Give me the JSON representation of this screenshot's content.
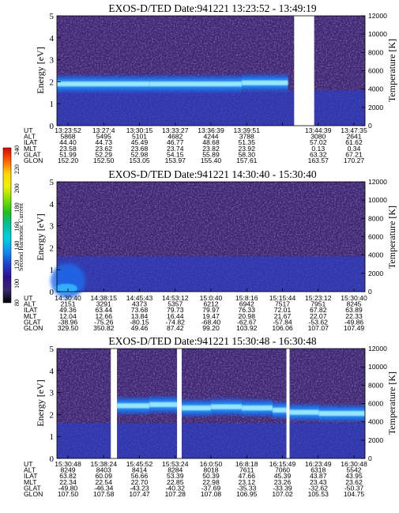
{
  "colors": {
    "background": "#ffffff",
    "field_dark": "#3a2870",
    "field_blue": "#2a3fc8",
    "band_cyan": "#32b4ff",
    "band_core": "#9ee8ff",
    "gap": "#ffffff"
  },
  "colorbar": {
    "label": "Second Harmonic Current",
    "ticks": [
      "240",
      "220",
      "200",
      "180",
      "160",
      "140",
      "120",
      "100",
      "80"
    ],
    "stops": [
      "#e00000",
      "#ff6000",
      "#ffd800",
      "#f0f000",
      "#80e000",
      "#20c020",
      "#00c0a0",
      "#00d0e0",
      "#1090f0",
      "#2040d0",
      "#301090",
      "#3a2870",
      "#000000"
    ]
  },
  "chart_data": [
    {
      "type": "heatmap",
      "title": "EXOS-D/TED   Date:941221   13:23:52 - 13:49:19",
      "ylabel": "Energy [eV]",
      "y2label": "Temperature [K]",
      "ylim": [
        0,
        5
      ],
      "y2lim": [
        0,
        12000
      ],
      "yticks": [
        "0",
        "1",
        "2",
        "3",
        "4",
        "5"
      ],
      "y2ticks": [
        "0",
        "2000",
        "4000",
        "6000",
        "8000",
        "10000",
        "12000"
      ],
      "gaps": [
        [
          0.77,
          0.835
        ]
      ],
      "band": {
        "x": [
          0,
          0.3,
          0.6,
          0.75,
          0.77,
          0.835,
          1.0
        ],
        "energy_ev": [
          1.9,
          1.9,
          1.95,
          2.0,
          null,
          null,
          null
        ]
      },
      "orbit": {
        "labels": [
          "UT",
          "ALT",
          "ILAT",
          "MLT",
          "GLAT",
          "GLON"
        ],
        "columns": [
          [
            "13:23:52",
            "5868",
            "44.40",
            "23.58",
            "51.99",
            "152.20"
          ],
          [
            "13:27:4",
            "5495",
            "44.73",
            "23.62",
            "52.29",
            "152.50"
          ],
          [
            "13:30:15",
            "5101",
            "45.49",
            "23.68",
            "52.98",
            "153.05"
          ],
          [
            "13:33:27",
            "4682",
            "46.77",
            "23.74",
            "54.15",
            "153.97"
          ],
          [
            "13:36:39",
            "4244",
            "48.68",
            "23.82",
            "55.89",
            "155.40"
          ],
          [
            "13:39:51",
            "3788",
            "51.35",
            "23.92",
            "58.30",
            "157.61"
          ],
          [
            "",
            "",
            "",
            "",
            "",
            ""
          ],
          [
            "13:44:39",
            "3080",
            "57.02",
            "0.13",
            "63.32",
            "163.57"
          ],
          [
            "13:47:35",
            "2641",
            "61.62",
            "0.34",
            "67.21",
            "170.27"
          ]
        ]
      }
    },
    {
      "type": "heatmap",
      "title": "EXOS-D/TED   Date:941221   14:30:40 - 15:30:40",
      "ylabel": "Energy [eV]",
      "y2label": "Temperature [K]",
      "ylim": [
        0,
        5
      ],
      "y2lim": [
        0,
        12000
      ],
      "yticks": [
        "0",
        "1",
        "2",
        "3",
        "4",
        "5"
      ],
      "y2ticks": [
        "0",
        "2000",
        "4000",
        "6000",
        "8000",
        "10000",
        "12000"
      ],
      "gaps": [],
      "band": null,
      "orbit": {
        "labels": [
          "UT",
          "ALT",
          "ILAT",
          "MLT",
          "GLAT",
          "GLON"
        ],
        "columns": [
          [
            "14:30:40",
            "2151",
            "49.36",
            "12.04",
            "-38.96",
            "329.50"
          ],
          [
            "14:38:15",
            "3291",
            "63.44",
            "12.66",
            "-75.26",
            "350.82"
          ],
          [
            "14:45:43",
            "4373",
            "73.68",
            "13.84",
            "-80.15",
            "49.46"
          ],
          [
            "14:53:12",
            "5357",
            "79.73",
            "16.44",
            "-74.82",
            "87.42"
          ],
          [
            "15:0:40",
            "6212",
            "79.97",
            "19.47",
            "-68.40",
            "99.20"
          ],
          [
            "15:8:16",
            "6942",
            "76.33",
            "20.98",
            "-62.67",
            "103.92"
          ],
          [
            "15:15:44",
            "7517",
            "72.01",
            "21.67",
            "-57.84",
            "106.06"
          ],
          [
            "15:23:12",
            "7951",
            "67.82",
            "22.07",
            "-53.62",
            "107.07"
          ],
          [
            "15:30:40",
            "8245",
            "63.89",
            "22.33",
            "-49.86",
            "107.49"
          ]
        ]
      }
    },
    {
      "type": "heatmap",
      "title": "EXOS-D/TED   Date:941221   15:30:48 - 16:30:48",
      "ylabel": "Energy [eV]",
      "y2label": "Temperature [K]",
      "ylim": [
        0,
        5
      ],
      "y2lim": [
        0,
        12000
      ],
      "yticks": [
        "0",
        "1",
        "2",
        "3",
        "4",
        "5"
      ],
      "y2ticks": [
        "0",
        "2000",
        "4000",
        "6000",
        "8000",
        "10000",
        "12000"
      ],
      "gaps": [
        [
          0.175,
          0.195
        ],
        [
          0.39,
          0.405
        ],
        [
          0.745,
          0.755
        ]
      ],
      "band": {
        "x": [
          0.195,
          0.3,
          0.39,
          0.405,
          0.5,
          0.6,
          0.7,
          0.745,
          0.755,
          0.85,
          1.0
        ],
        "energy_ev": [
          2.4,
          2.45,
          2.4,
          2.3,
          2.35,
          2.3,
          2.2,
          2.15,
          2.1,
          2.05,
          2.0
        ]
      },
      "orbit": {
        "labels": [
          "UT",
          "ALT",
          "ILAT",
          "MLT",
          "GLAT",
          "GLON"
        ],
        "columns": [
          [
            "15:30:48",
            "8249",
            "63.82",
            "22.34",
            "-49.80",
            "107.50"
          ],
          [
            "15:38:24",
            "8403",
            "60.09",
            "22.54",
            "-46.34",
            "107.58"
          ],
          [
            "15:45:52",
            "8414",
            "56.66",
            "22.70",
            "-43.23",
            "107.47"
          ],
          [
            "15:53:24",
            "8284",
            "53.39",
            "22.85",
            "-40.32",
            "107.28"
          ],
          [
            "16:0:50",
            "8018",
            "50.39",
            "22.98",
            "-37.69",
            "107.08"
          ],
          [
            "16:8:18",
            "7611",
            "47.66",
            "23.12",
            "-35.33",
            "106.95"
          ],
          [
            "16:15:49",
            "7060",
            "45.39",
            "23.26",
            "-33.39",
            "107.02"
          ],
          [
            "16:23:49",
            "6318",
            "43.87",
            "23.43",
            "-32.62",
            "105.53"
          ],
          [
            "16:30:48",
            "5542",
            "43.95",
            "23.62",
            "-50.37",
            "104.75"
          ]
        ]
      }
    }
  ]
}
